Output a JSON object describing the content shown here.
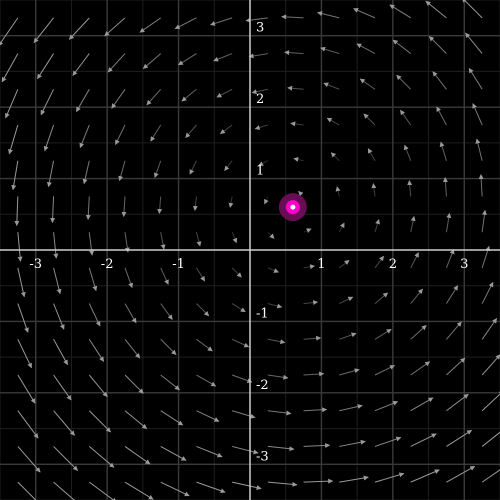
{
  "plot": {
    "x_range": [
      -3.5,
      3.5
    ],
    "y_range": [
      -3.5,
      3.5
    ],
    "x_ticks": [
      {
        "value": -3,
        "label": "-3"
      },
      {
        "value": -2,
        "label": "-2"
      },
      {
        "value": -1,
        "label": "-1"
      },
      {
        "value": 1,
        "label": "1"
      },
      {
        "value": 2,
        "label": "2"
      },
      {
        "value": 3,
        "label": "3"
      }
    ],
    "y_ticks": [
      {
        "value": 3,
        "label": "3"
      },
      {
        "value": 2,
        "label": "2"
      },
      {
        "value": 1,
        "label": "1"
      },
      {
        "value": -1,
        "label": "-1"
      },
      {
        "value": -2,
        "label": "-2"
      },
      {
        "value": -3,
        "label": "-3"
      }
    ],
    "major_grid_step": 1,
    "minor_grid_step": 0.5,
    "vector_field": {
      "description_of_flow": "rotation about an equilibrium point",
      "grid_step": 0.5,
      "equilibrium": {
        "x": 0.6,
        "y": 0.6
      }
    },
    "colors": {
      "background": "#000000",
      "axis": "#cfcfcf",
      "major_grid": "#3a3a3a",
      "minor_grid": "#1e1e1e",
      "arrow": "#9a9a9a",
      "point_fill": "#ff00cc",
      "point_glow": "#7a0f62",
      "point_center": "#ffffff"
    }
  }
}
